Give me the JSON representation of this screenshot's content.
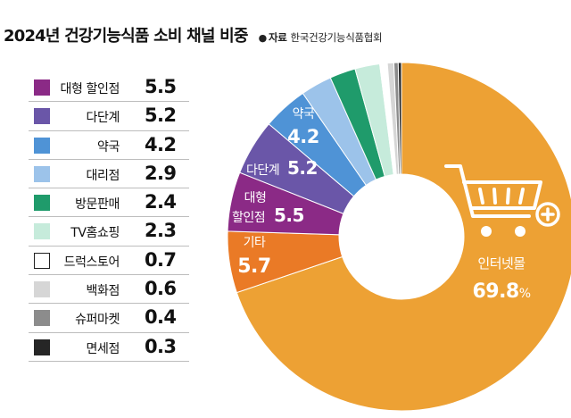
{
  "header": {
    "title": "2024년 건강기능식품 소비 채널 비중",
    "source_bullet": "●",
    "source_label": "자료",
    "source_name": "한국건강기능식품협회"
  },
  "legend": [
    {
      "label": "대형 할인점",
      "value": "5.5",
      "color": "#8b2a86"
    },
    {
      "label": "다단계",
      "value": "5.2",
      "color": "#6a56a8"
    },
    {
      "label": "약국",
      "value": "4.2",
      "color": "#4f93d6"
    },
    {
      "label": "대리점",
      "value": "2.9",
      "color": "#9cc3ea"
    },
    {
      "label": "방문판매",
      "value": "2.4",
      "color": "#1f9b6b"
    },
    {
      "label": "TV홈쇼핑",
      "value": "2.3",
      "color": "#c6ebdb"
    },
    {
      "label": "드럭스토어",
      "value": "0.7",
      "color": "#ffffff"
    },
    {
      "label": "백화점",
      "value": "0.6",
      "color": "#d6d6d6"
    },
    {
      "label": "슈퍼마켓",
      "value": "0.4",
      "color": "#8c8c8c"
    },
    {
      "label": "면세점",
      "value": "0.3",
      "color": "#262626"
    }
  ],
  "chart_data": {
    "type": "pie",
    "title": "2024년 건강기능식품 소비 채널 비중",
    "unit": "%",
    "donut": true,
    "slices": [
      {
        "name": "인터넷몰",
        "value": 69.8,
        "color": "#eda134"
      },
      {
        "name": "기타",
        "value": 5.7,
        "color": "#ea7a26"
      },
      {
        "name": "대형 할인점",
        "value": 5.5,
        "color": "#8b2a86"
      },
      {
        "name": "다단계",
        "value": 5.2,
        "color": "#6a56a8"
      },
      {
        "name": "약국",
        "value": 4.2,
        "color": "#4f93d6"
      },
      {
        "name": "대리점",
        "value": 2.9,
        "color": "#9cc3ea"
      },
      {
        "name": "방문판매",
        "value": 2.4,
        "color": "#1f9b6b"
      },
      {
        "name": "TV홈쇼핑",
        "value": 2.3,
        "color": "#c6ebdb"
      },
      {
        "name": "드럭스토어",
        "value": 0.7,
        "color": "#ffffff"
      },
      {
        "name": "백화점",
        "value": 0.6,
        "color": "#d6d6d6"
      },
      {
        "name": "슈퍼마켓",
        "value": 0.4,
        "color": "#8c8c8c"
      },
      {
        "name": "면세점",
        "value": 0.3,
        "color": "#262626"
      }
    ],
    "slice_labels": [
      {
        "name": "인터넷몰",
        "value": "69.8",
        "suffix": "%"
      },
      {
        "name": "기타",
        "value": "5.7"
      },
      {
        "name": "대형\n할인점",
        "value": "5.5"
      },
      {
        "name": "다단계",
        "value": "5.2"
      },
      {
        "name": "약국",
        "value": "4.2"
      }
    ]
  },
  "icons": {
    "cart": "shopping-cart-plus-icon"
  }
}
